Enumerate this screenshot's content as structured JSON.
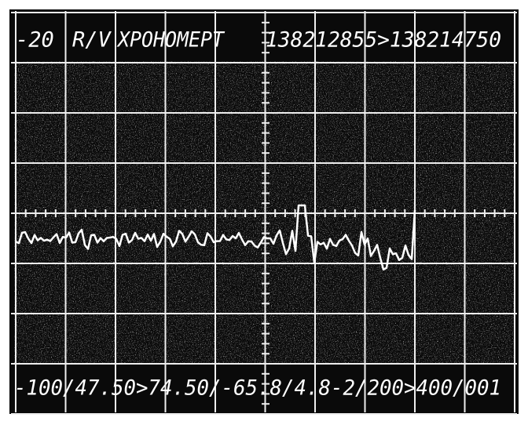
{
  "header": {
    "level": "-20",
    "mode": "R/V",
    "label": "XPOHOMEPT",
    "range": "138212855>138214750"
  },
  "footer": {
    "readout": "-100/47.50>74.50/-65.8/4.8-2/200>400/001"
  }
}
